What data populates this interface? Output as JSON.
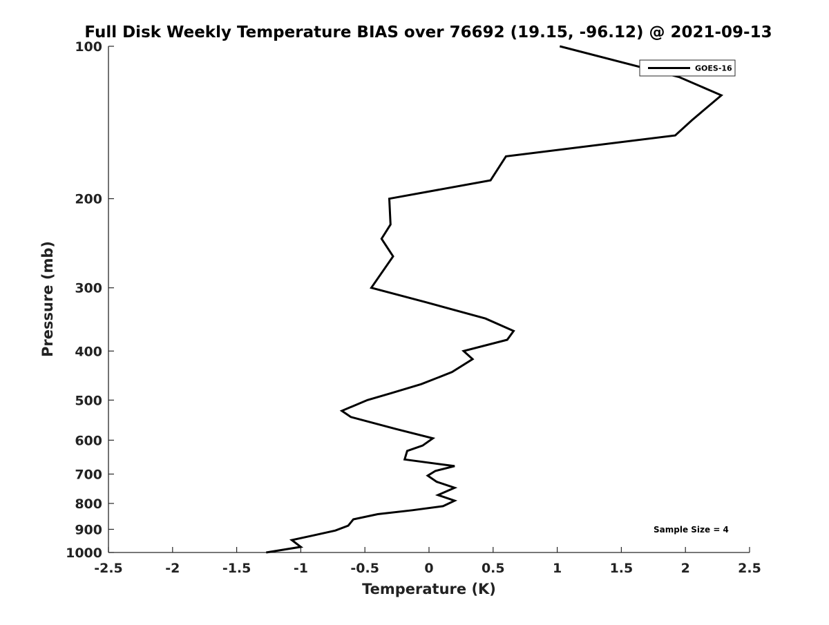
{
  "chart_data": {
    "type": "line",
    "title": "Full Disk Weekly Temperature BIAS over 76692 (19.15, -96.12) @ 2021-09-13",
    "xlabel": "Temperature (K)",
    "ylabel": "Pressure (mb)",
    "xlim": [
      -2.5,
      2.5
    ],
    "ylim": [
      100,
      1000
    ],
    "y_scale": "log",
    "y_reversed": true,
    "x_ticks": [
      "-2.5",
      "-2",
      "-1.5",
      "-1",
      "-0.5",
      "0",
      "0.5",
      "1",
      "1.5",
      "2",
      "2.5"
    ],
    "y_ticks": [
      "100",
      "200",
      "300",
      "400",
      "500",
      "600",
      "700",
      "800",
      "900",
      "1000"
    ],
    "grid": false,
    "legend_position": "top-right",
    "annotation": "Sample Size = 4",
    "series": [
      {
        "name": "GOES-16",
        "color": "#000000",
        "points": [
          {
            "x": 1.02,
            "y": 100
          },
          {
            "x": 1.95,
            "y": 115
          },
          {
            "x": 2.28,
            "y": 125
          },
          {
            "x": 2.05,
            "y": 140
          },
          {
            "x": 1.92,
            "y": 150
          },
          {
            "x": 0.6,
            "y": 165
          },
          {
            "x": 0.48,
            "y": 184
          },
          {
            "x": -0.31,
            "y": 200
          },
          {
            "x": -0.3,
            "y": 225
          },
          {
            "x": -0.37,
            "y": 240
          },
          {
            "x": -0.28,
            "y": 260
          },
          {
            "x": -0.45,
            "y": 300
          },
          {
            "x": -0.03,
            "y": 320
          },
          {
            "x": 0.44,
            "y": 345
          },
          {
            "x": 0.66,
            "y": 365
          },
          {
            "x": 0.61,
            "y": 380
          },
          {
            "x": 0.27,
            "y": 400
          },
          {
            "x": 0.34,
            "y": 415
          },
          {
            "x": 0.18,
            "y": 440
          },
          {
            "x": -0.06,
            "y": 465
          },
          {
            "x": -0.3,
            "y": 485
          },
          {
            "x": -0.48,
            "y": 500
          },
          {
            "x": -0.68,
            "y": 525
          },
          {
            "x": -0.61,
            "y": 540
          },
          {
            "x": -0.26,
            "y": 570
          },
          {
            "x": 0.03,
            "y": 595
          },
          {
            "x": -0.05,
            "y": 615
          },
          {
            "x": -0.17,
            "y": 630
          },
          {
            "x": -0.19,
            "y": 655
          },
          {
            "x": 0.2,
            "y": 675
          },
          {
            "x": 0.05,
            "y": 690
          },
          {
            "x": -0.01,
            "y": 705
          },
          {
            "x": 0.06,
            "y": 725
          },
          {
            "x": 0.2,
            "y": 745
          },
          {
            "x": 0.07,
            "y": 770
          },
          {
            "x": 0.2,
            "y": 790
          },
          {
            "x": 0.11,
            "y": 810
          },
          {
            "x": -0.13,
            "y": 825
          },
          {
            "x": -0.4,
            "y": 840
          },
          {
            "x": -0.59,
            "y": 860
          },
          {
            "x": -0.63,
            "y": 885
          },
          {
            "x": -0.73,
            "y": 905
          },
          {
            "x": -0.9,
            "y": 925
          },
          {
            "x": -1.07,
            "y": 945
          },
          {
            "x": -1.0,
            "y": 975
          },
          {
            "x": -1.27,
            "y": 1000
          }
        ]
      }
    ]
  }
}
